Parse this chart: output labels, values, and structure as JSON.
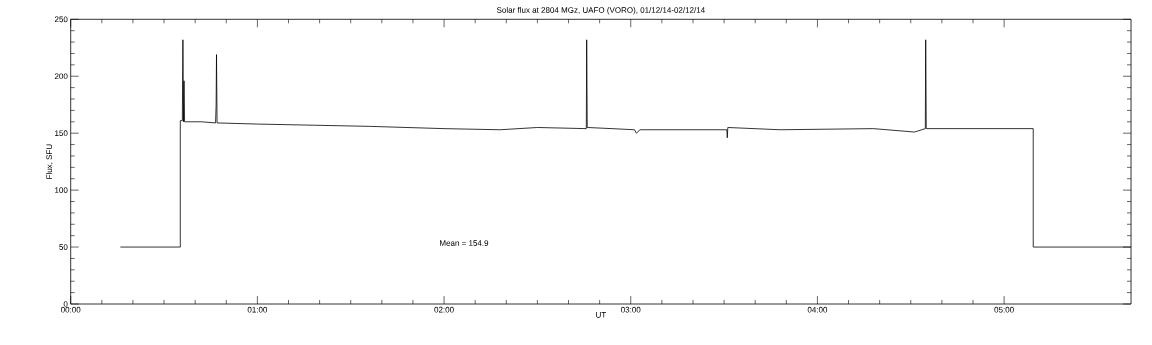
{
  "chart_data": {
    "type": "line",
    "title": "Solar flux at 2804 MGz, UAFO (VORO),  01/12/14-02/12/14",
    "xlabel": "UT",
    "ylabel": "Flux, SFU",
    "annotations": [
      "Mean =  154.9"
    ],
    "x": [
      0.266,
      0.587,
      0.587,
      0.598,
      0.601,
      0.604,
      0.607,
      0.61,
      0.7,
      0.776,
      0.779,
      0.781,
      0.784,
      1.0,
      1.3,
      1.6,
      2.0,
      2.3,
      2.5,
      2.762,
      2.764,
      2.767,
      2.9,
      3.02,
      3.03,
      3.05,
      3.515,
      3.517,
      3.52,
      3.8,
      4.3,
      4.52,
      4.578,
      4.58,
      4.583,
      5.156,
      5.156,
      5.68
    ],
    "values": [
      50,
      50,
      161,
      161,
      232,
      160,
      196,
      160,
      160,
      159,
      175,
      219,
      159,
      158,
      157,
      156,
      154,
      153,
      155,
      154,
      232,
      155,
      154,
      153,
      150,
      153,
      153,
      146,
      155,
      153,
      154,
      151,
      154,
      232,
      154,
      154,
      50,
      50
    ],
    "color": "#000000",
    "xlim": [
      0,
      5.68
    ],
    "ylim": [
      0,
      250
    ],
    "xticks": [
      {
        "value": 0,
        "label": "00:00"
      },
      {
        "value": 1,
        "label": "01:00"
      },
      {
        "value": 2,
        "label": "02:00"
      },
      {
        "value": 3,
        "label": "03:00"
      },
      {
        "value": 4,
        "label": "04:00"
      },
      {
        "value": 5,
        "label": "05:00"
      }
    ],
    "yticks": [
      0,
      50,
      100,
      150,
      200,
      250
    ]
  }
}
